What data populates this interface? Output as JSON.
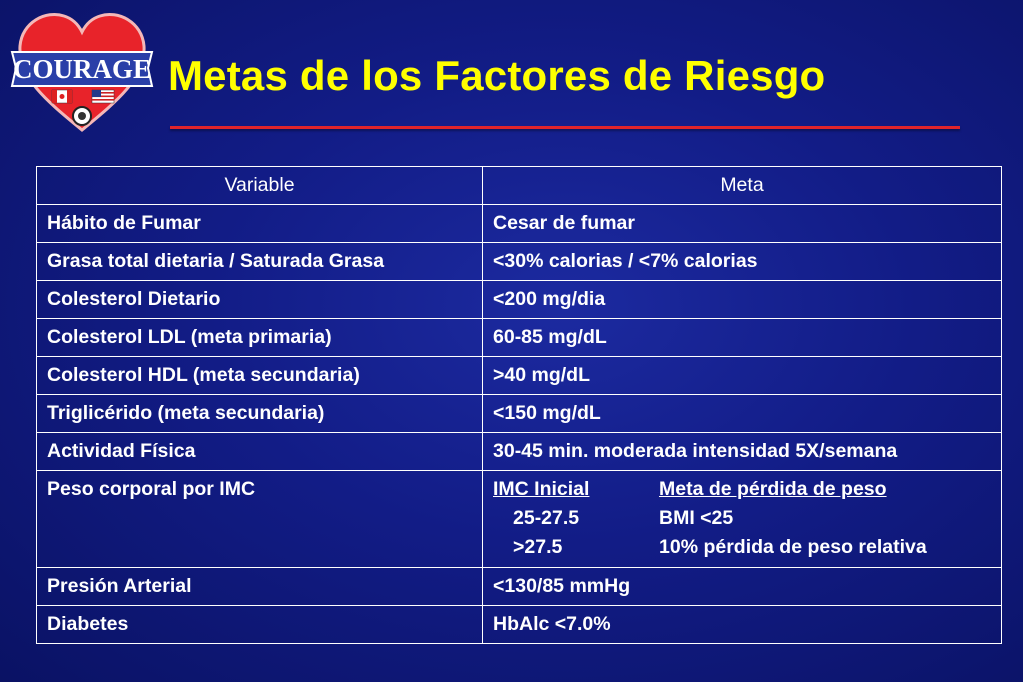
{
  "logo": {
    "text": "COURAGE"
  },
  "title": "Metas de los Factores de Riesgo",
  "table": {
    "headers": [
      "Variable",
      "Meta"
    ],
    "rows": [
      {
        "variable": "Hábito de Fumar",
        "goal": "Cesar de fumar"
      },
      {
        "variable": "Grasa total dietaria / Saturada Grasa",
        "goal": "<30% calorias / <7% calorias"
      },
      {
        "variable": "Colesterol Dietario",
        "goal": "<200 mg/dia"
      },
      {
        "variable": "Colesterol LDL (meta primaria)",
        "goal": "60-85 mg/dL"
      },
      {
        "variable": "Colesterol HDL (meta secundaria)",
        "goal": ">40 mg/dL"
      },
      {
        "variable": "Triglicérido (meta secundaria)",
        "goal": "<150 mg/dL"
      },
      {
        "variable": "Actividad Física",
        "goal": "30-45 min. moderada intensidad 5X/semana"
      }
    ],
    "bmi_row": {
      "variable": "Peso corporal por IMC",
      "col_head_1": "IMC Inicial",
      "col_head_2": "Meta de pérdida de peso",
      "r1_c1": "25-27.5",
      "r1_c2": "BMI <25",
      "r2_c1": ">27.5",
      "r2_c2": "10% pérdida de peso relativa"
    },
    "rows_after": [
      {
        "variable": "Presión Arterial",
        "goal": "<130/85 mmHg"
      },
      {
        "variable": "Diabetes",
        "goal": "HbAlc <7.0%"
      }
    ]
  }
}
